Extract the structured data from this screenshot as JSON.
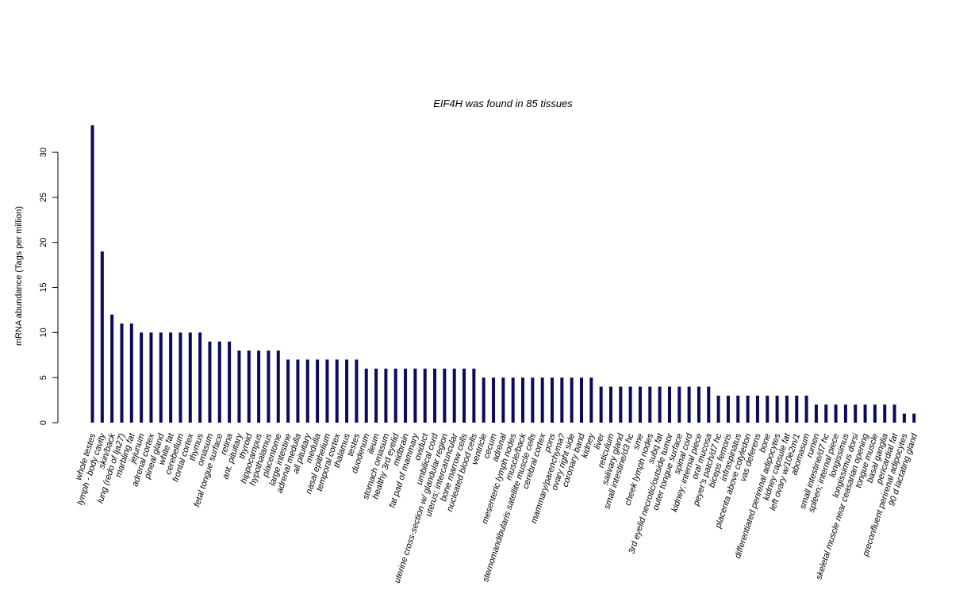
{
  "chart_data": {
    "type": "bar",
    "title": "EIF4H  was found in  85  tissues",
    "xlabel": "",
    "ylabel": "mRNA abundance (Tags per million)",
    "ylim": [
      0,
      33
    ],
    "yticks": [
      0,
      5,
      10,
      15,
      20,
      25,
      30
    ],
    "bar_color": "#0a0a5e",
    "categories": [
      "whole testes",
      "lymph - body cavity",
      "skin/back",
      "lung (redo of lja27)",
      "marbling fat",
      "jejunum",
      "adrenal cortex",
      "pineal gland",
      "white fat",
      "cerebellum",
      "frontal cortex",
      "thymus",
      "omasum",
      "fetal tongue surface",
      "retina",
      "ant. pituitary",
      "thyroid",
      "hippocampus",
      "hypothalamus",
      "placentome",
      "large intestine",
      "adrenal medulla",
      "all pituitary",
      "medulla",
      "nasal epithelium",
      "temporal cortex",
      "thalamus",
      "testes",
      "duodenum",
      "ileum",
      "stomach omasum",
      "healthy 3rd eyelid",
      "midbrain",
      "fat pad of mammary",
      "oviduct",
      "umbilical cord",
      "uterine cross-section w/ glandular region",
      "uterus; intercaruncular",
      "bone marrow cells",
      "nucleated blood cells",
      "ventricle",
      "cecum",
      "adrenal",
      "mesenteric lymph nodes",
      "muscle/back",
      "sternomandibularis satellite muscle cells",
      "cerebral cortex",
      "pons",
      "mammary/parenchyma?",
      "ovary right side",
      "coronary band",
      "kidney",
      "liver",
      "reticulum",
      "salivary gland",
      "small intestine/d3 hc",
      "sme",
      "cheek lymph nodes",
      "subq fat",
      "3rd eyelid necrotic/outside tumor",
      "outer tongue surface",
      "spinal cord",
      "kidney; internal piece",
      "oral mucosa",
      "peyer's patch/d7 hc",
      "biceps femoris",
      "infraspinatus",
      "placenta above cotyledon",
      "vas deferens",
      "bone",
      "differentiated perirenal adipocytes",
      "kidney capsule fat",
      "left ovary w/10e2m/1",
      "abomasum",
      "rumen",
      "small intestine/d7 hc",
      "spleen; internal piece",
      "longissimus",
      "longissimus dorsi",
      "skeletal muscle near ceasarian opening",
      "tongue muscle",
      "basal ganglia",
      "pericardial fat",
      "preconfluent perirenal adipocytes",
      "90 d lactating gland"
    ],
    "values": [
      33,
      19,
      12,
      11,
      11,
      10,
      10,
      10,
      10,
      10,
      10,
      10,
      9,
      9,
      9,
      8,
      8,
      8,
      8,
      8,
      7,
      7,
      7,
      7,
      7,
      7,
      7,
      7,
      6,
      6,
      6,
      6,
      6,
      6,
      6,
      6,
      6,
      6,
      6,
      6,
      5,
      5,
      5,
      5,
      5,
      5,
      5,
      5,
      5,
      5,
      5,
      5,
      4,
      4,
      4,
      4,
      4,
      4,
      4,
      4,
      4,
      4,
      4,
      4,
      3,
      3,
      3,
      3,
      3,
      3,
      3,
      3,
      3,
      3,
      2,
      2,
      2,
      2,
      2,
      2,
      2,
      2,
      2,
      1,
      1
    ]
  }
}
